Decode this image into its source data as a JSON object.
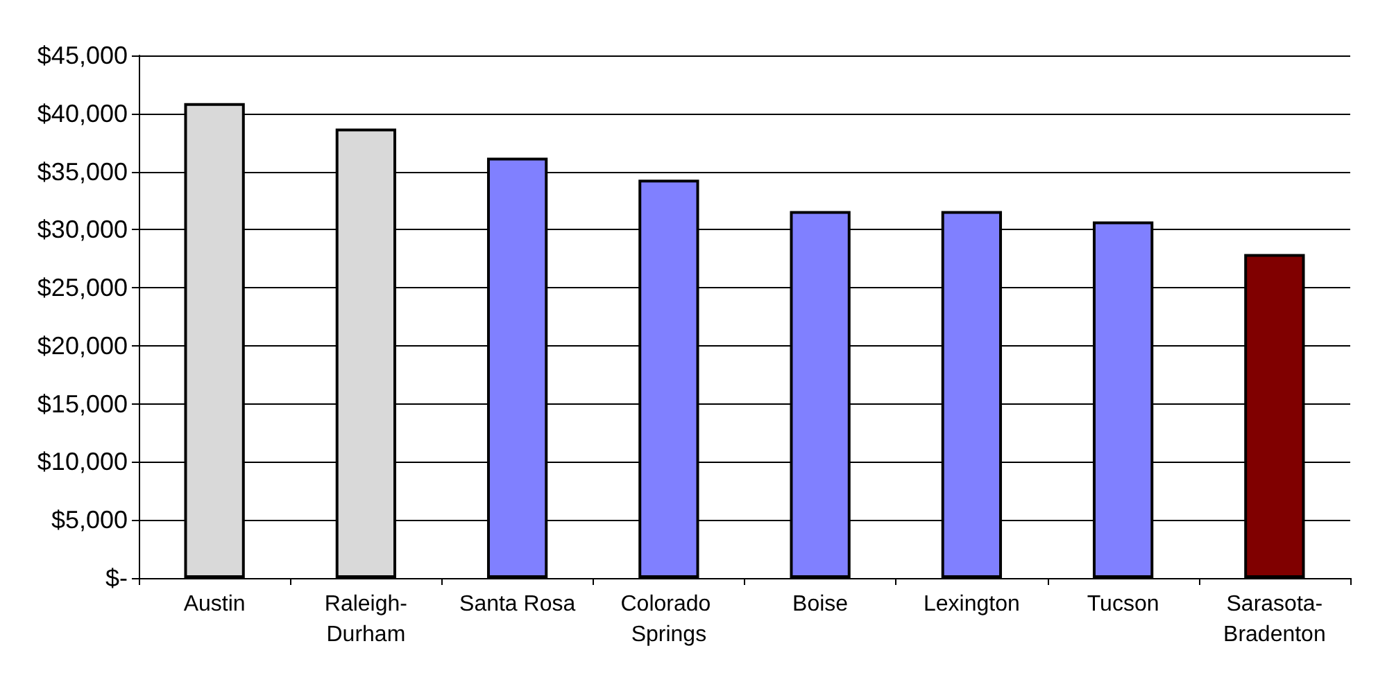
{
  "chart_data": {
    "type": "bar",
    "categories": [
      "Austin",
      "Raleigh-Durham",
      "Santa Rosa",
      "Colorado Springs",
      "Boise",
      "Lexington",
      "Tucson",
      "Sarasota-Bradenton"
    ],
    "values": [
      40900,
      38700,
      36200,
      34300,
      31600,
      31600,
      30700,
      27900
    ],
    "colors": [
      "#d9d9d9",
      "#d9d9d9",
      "#8080ff",
      "#8080ff",
      "#8080ff",
      "#8080ff",
      "#8080ff",
      "#800000"
    ],
    "ylim": [
      0,
      45000
    ],
    "yticks": [
      {
        "value": 0,
        "label": "$-"
      },
      {
        "value": 5000,
        "label": "$5,000"
      },
      {
        "value": 10000,
        "label": "$10,000"
      },
      {
        "value": 15000,
        "label": "$15,000"
      },
      {
        "value": 20000,
        "label": "$20,000"
      },
      {
        "value": 25000,
        "label": "$25,000"
      },
      {
        "value": 30000,
        "label": "$30,000"
      },
      {
        "value": 35000,
        "label": "$35,000"
      },
      {
        "value": 40000,
        "label": "$40,000"
      },
      {
        "value": 45000,
        "label": "$45,000"
      }
    ],
    "grid": "y"
  }
}
